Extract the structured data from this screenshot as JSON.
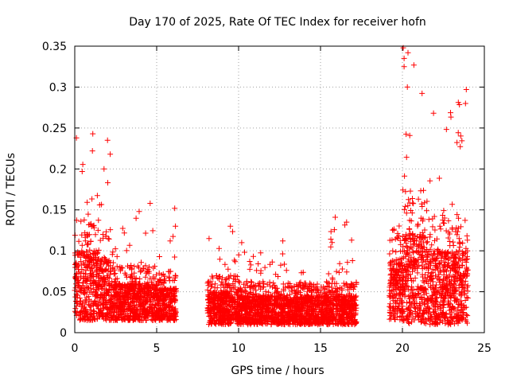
{
  "chart_data": {
    "type": "scatter",
    "title": "Day 170 of 2025, Rate Of TEC Index for receiver hofn",
    "xlabel": "GPS time / hours",
    "ylabel": "ROTI / TECUs",
    "xlim": [
      0,
      25
    ],
    "ylim": [
      0,
      0.35
    ],
    "xticks": [
      0,
      5,
      10,
      15,
      20,
      25
    ],
    "yticks": [
      0,
      0.05,
      0.1,
      0.15,
      0.2,
      0.25,
      0.3,
      0.35
    ],
    "grid": true,
    "marker": "plus",
    "color": "#ff0000",
    "density_profile": [
      {
        "from": 0.0,
        "to": 1.5,
        "base": 0.015,
        "typical": 0.1,
        "max": 0.24
      },
      {
        "from": 1.5,
        "to": 2.2,
        "base": 0.015,
        "typical": 0.09,
        "max": 0.235
      },
      {
        "from": 2.2,
        "to": 3.5,
        "base": 0.015,
        "typical": 0.06,
        "max": 0.135
      },
      {
        "from": 3.5,
        "to": 5.0,
        "base": 0.015,
        "typical": 0.06,
        "max": 0.15
      },
      {
        "from": 5.0,
        "to": 6.2,
        "base": 0.015,
        "typical": 0.055,
        "max": 0.15
      },
      {
        "from": 8.1,
        "to": 10.0,
        "base": 0.01,
        "typical": 0.05,
        "max": 0.125
      },
      {
        "from": 10.0,
        "to": 13.0,
        "base": 0.01,
        "typical": 0.045,
        "max": 0.11
      },
      {
        "from": 13.0,
        "to": 15.5,
        "base": 0.01,
        "typical": 0.045,
        "max": 0.08
      },
      {
        "from": 15.5,
        "to": 17.2,
        "base": 0.01,
        "typical": 0.045,
        "max": 0.14
      },
      {
        "from": 19.2,
        "to": 20.0,
        "base": 0.015,
        "typical": 0.09,
        "max": 0.15
      },
      {
        "from": 20.0,
        "to": 21.5,
        "base": 0.01,
        "typical": 0.12,
        "max": 0.35
      },
      {
        "from": 21.5,
        "to": 23.0,
        "base": 0.01,
        "typical": 0.1,
        "max": 0.27
      },
      {
        "from": 23.0,
        "to": 24.0,
        "base": 0.01,
        "typical": 0.1,
        "max": 0.3
      }
    ],
    "gaps": [
      [
        6.2,
        8.1
      ],
      [
        17.2,
        19.2
      ]
    ],
    "notable_points": [
      {
        "x": 20.05,
        "y": 0.348
      },
      {
        "x": 20.1,
        "y": 0.335
      },
      {
        "x": 20.1,
        "y": 0.325
      },
      {
        "x": 20.7,
        "y": 0.327
      },
      {
        "x": 20.3,
        "y": 0.3
      },
      {
        "x": 23.9,
        "y": 0.297
      },
      {
        "x": 23.85,
        "y": 0.28
      },
      {
        "x": 21.9,
        "y": 0.268
      },
      {
        "x": 1.1,
        "y": 0.243
      },
      {
        "x": 0.1,
        "y": 0.238
      },
      {
        "x": 2.0,
        "y": 0.235
      },
      {
        "x": 15.9,
        "y": 0.141
      },
      {
        "x": 4.6,
        "y": 0.158
      },
      {
        "x": 6.1,
        "y": 0.152
      },
      {
        "x": 8.2,
        "y": 0.115
      },
      {
        "x": 9.5,
        "y": 0.13
      },
      {
        "x": 12.7,
        "y": 0.112
      },
      {
        "x": 16.9,
        "y": 0.113
      }
    ]
  }
}
